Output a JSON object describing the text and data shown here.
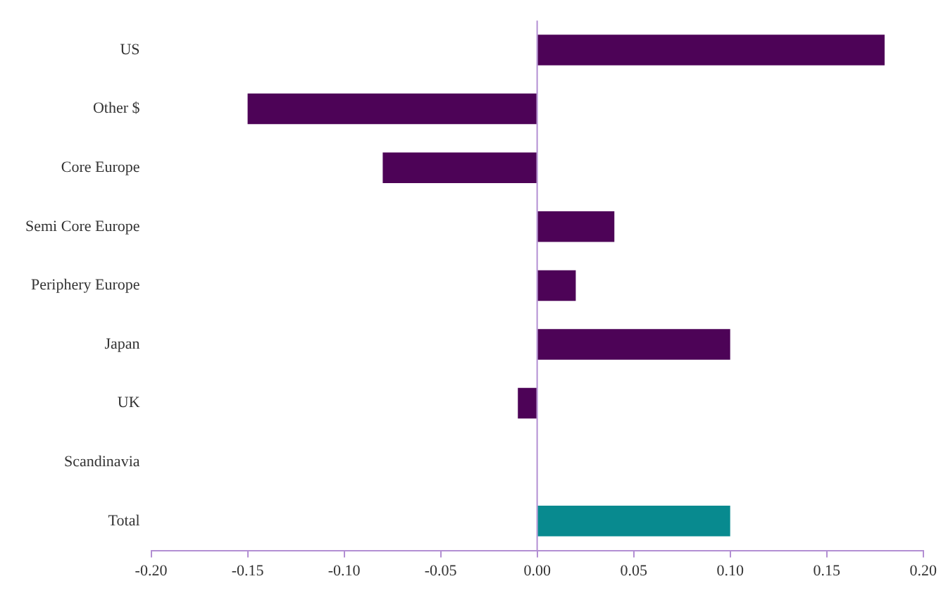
{
  "chart_data": {
    "type": "bar",
    "orientation": "horizontal",
    "categories": [
      "US",
      "Other $",
      "Core Europe",
      "Semi Core Europe",
      "Periphery Europe",
      "Japan",
      "UK",
      "Scandinavia",
      "Total"
    ],
    "values": [
      0.18,
      -0.15,
      -0.08,
      0.04,
      0.02,
      0.1,
      -0.01,
      0,
      0.1
    ],
    "colors": [
      "#4d0357",
      "#4d0357",
      "#4d0357",
      "#4d0357",
      "#4d0357",
      "#4d0357",
      "#4d0357",
      "#4d0357",
      "#088a8f"
    ],
    "xlim": [
      -0.2,
      0.2
    ],
    "xticks": [
      {
        "value": -0.2,
        "label": "-0.20"
      },
      {
        "value": -0.15,
        "label": "-0.15"
      },
      {
        "value": -0.1,
        "label": "-0.10"
      },
      {
        "value": -0.05,
        "label": "-0.05"
      },
      {
        "value": 0,
        "label": "0.00"
      },
      {
        "value": 0.05,
        "label": "0.05"
      },
      {
        "value": 0.1,
        "label": "0.10"
      },
      {
        "value": 0.15,
        "label": "0.15"
      },
      {
        "value": 0.2,
        "label": "0.20"
      }
    ],
    "ref_lines": [
      {
        "axis": "x",
        "value": 0,
        "color": "#b38fd3"
      }
    ],
    "grid": false,
    "legend": false
  }
}
